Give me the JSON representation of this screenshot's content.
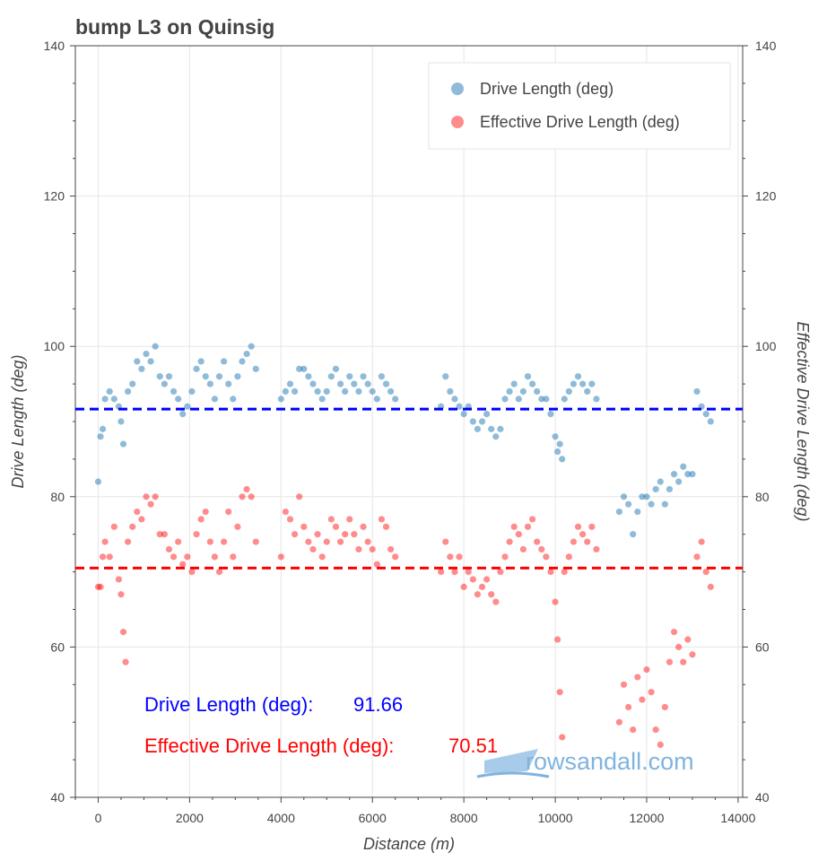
{
  "chart_data": {
    "type": "scatter",
    "title": "bump L3 on Quinsig",
    "xlabel": "Distance (m)",
    "ylabel": "Drive Length (deg)",
    "ylabel_right": "Effective Drive Length (deg)",
    "xlim": [
      -500,
      14100
    ],
    "ylim": [
      40,
      140
    ],
    "x_ticks": [
      0,
      2000,
      4000,
      6000,
      8000,
      10000,
      12000,
      14000
    ],
    "y_ticks": [
      40,
      60,
      80,
      100,
      120,
      140
    ],
    "legend_position": "top-right",
    "series": [
      {
        "name": "Drive Length (deg)",
        "color": "#1f77b4",
        "mean": 91.66,
        "mean_color": "#0000ff",
        "points": [
          [
            0,
            82
          ],
          [
            50,
            88
          ],
          [
            100,
            89
          ],
          [
            150,
            93
          ],
          [
            250,
            94
          ],
          [
            350,
            93
          ],
          [
            450,
            92
          ],
          [
            500,
            90
          ],
          [
            550,
            87
          ],
          [
            650,
            94
          ],
          [
            750,
            95
          ],
          [
            850,
            98
          ],
          [
            950,
            97
          ],
          [
            1050,
            99
          ],
          [
            1150,
            98
          ],
          [
            1250,
            100
          ],
          [
            1350,
            96
          ],
          [
            1450,
            95
          ],
          [
            1550,
            96
          ],
          [
            1650,
            94
          ],
          [
            1750,
            93
          ],
          [
            1850,
            91
          ],
          [
            1950,
            92
          ],
          [
            2050,
            94
          ],
          [
            2150,
            97
          ],
          [
            2250,
            98
          ],
          [
            2350,
            96
          ],
          [
            2450,
            95
          ],
          [
            2550,
            93
          ],
          [
            2650,
            96
          ],
          [
            2750,
            98
          ],
          [
            2850,
            95
          ],
          [
            2950,
            93
          ],
          [
            3050,
            96
          ],
          [
            3150,
            98
          ],
          [
            3250,
            99
          ],
          [
            3350,
            100
          ],
          [
            3450,
            97
          ],
          [
            4000,
            93
          ],
          [
            4100,
            94
          ],
          [
            4200,
            95
          ],
          [
            4300,
            94
          ],
          [
            4400,
            97
          ],
          [
            4500,
            97
          ],
          [
            4600,
            96
          ],
          [
            4700,
            95
          ],
          [
            4800,
            94
          ],
          [
            4900,
            93
          ],
          [
            5000,
            94
          ],
          [
            5100,
            96
          ],
          [
            5200,
            97
          ],
          [
            5300,
            95
          ],
          [
            5400,
            94
          ],
          [
            5500,
            96
          ],
          [
            5600,
            95
          ],
          [
            5700,
            94
          ],
          [
            5800,
            96
          ],
          [
            5900,
            95
          ],
          [
            6000,
            94
          ],
          [
            6100,
            93
          ],
          [
            6200,
            96
          ],
          [
            6300,
            95
          ],
          [
            6400,
            94
          ],
          [
            6500,
            93
          ],
          [
            7500,
            92
          ],
          [
            7600,
            96
          ],
          [
            7700,
            94
          ],
          [
            7800,
            93
          ],
          [
            7900,
            92
          ],
          [
            8000,
            91
          ],
          [
            8100,
            92
          ],
          [
            8200,
            90
          ],
          [
            8300,
            89
          ],
          [
            8400,
            90
          ],
          [
            8500,
            91
          ],
          [
            8600,
            89
          ],
          [
            8700,
            88
          ],
          [
            8800,
            89
          ],
          [
            8900,
            93
          ],
          [
            9000,
            94
          ],
          [
            9100,
            95
          ],
          [
            9200,
            93
          ],
          [
            9300,
            94
          ],
          [
            9400,
            96
          ],
          [
            9500,
            95
          ],
          [
            9600,
            94
          ],
          [
            9700,
            93
          ],
          [
            9800,
            93
          ],
          [
            9900,
            91
          ],
          [
            10000,
            88
          ],
          [
            10050,
            86
          ],
          [
            10100,
            87
          ],
          [
            10150,
            85
          ],
          [
            10200,
            93
          ],
          [
            10300,
            94
          ],
          [
            10400,
            95
          ],
          [
            10500,
            96
          ],
          [
            10600,
            95
          ],
          [
            10700,
            94
          ],
          [
            10800,
            95
          ],
          [
            10900,
            93
          ],
          [
            11400,
            78
          ],
          [
            11500,
            80
          ],
          [
            11600,
            79
          ],
          [
            11700,
            75
          ],
          [
            11800,
            78
          ],
          [
            11900,
            80
          ],
          [
            12000,
            80
          ],
          [
            12100,
            79
          ],
          [
            12200,
            81
          ],
          [
            12300,
            82
          ],
          [
            12400,
            79
          ],
          [
            12500,
            81
          ],
          [
            12600,
            83
          ],
          [
            12700,
            82
          ],
          [
            12800,
            84
          ],
          [
            12900,
            83
          ],
          [
            13000,
            83
          ],
          [
            13100,
            94
          ],
          [
            13200,
            92
          ],
          [
            13300,
            91
          ],
          [
            13400,
            90
          ]
        ]
      },
      {
        "name": "Effective Drive Length (deg)",
        "color": "#ff0000",
        "mean": 70.51,
        "mean_color": "#ff0000",
        "points": [
          [
            0,
            68
          ],
          [
            50,
            68
          ],
          [
            100,
            72
          ],
          [
            150,
            74
          ],
          [
            250,
            72
          ],
          [
            350,
            76
          ],
          [
            450,
            69
          ],
          [
            500,
            67
          ],
          [
            550,
            62
          ],
          [
            600,
            58
          ],
          [
            650,
            74
          ],
          [
            750,
            76
          ],
          [
            850,
            78
          ],
          [
            950,
            77
          ],
          [
            1050,
            80
          ],
          [
            1150,
            79
          ],
          [
            1250,
            80
          ],
          [
            1350,
            75
          ],
          [
            1450,
            75
          ],
          [
            1550,
            73
          ],
          [
            1650,
            72
          ],
          [
            1750,
            74
          ],
          [
            1850,
            71
          ],
          [
            1950,
            72
          ],
          [
            2050,
            70
          ],
          [
            2150,
            75
          ],
          [
            2250,
            77
          ],
          [
            2350,
            78
          ],
          [
            2450,
            74
          ],
          [
            2550,
            72
          ],
          [
            2650,
            70
          ],
          [
            2750,
            74
          ],
          [
            2850,
            78
          ],
          [
            2950,
            72
          ],
          [
            3050,
            76
          ],
          [
            3150,
            80
          ],
          [
            3250,
            81
          ],
          [
            3350,
            80
          ],
          [
            3450,
            74
          ],
          [
            4000,
            72
          ],
          [
            4100,
            78
          ],
          [
            4200,
            77
          ],
          [
            4300,
            75
          ],
          [
            4400,
            80
          ],
          [
            4500,
            76
          ],
          [
            4600,
            74
          ],
          [
            4700,
            73
          ],
          [
            4800,
            75
          ],
          [
            4900,
            72
          ],
          [
            5000,
            74
          ],
          [
            5100,
            77
          ],
          [
            5200,
            76
          ],
          [
            5300,
            74
          ],
          [
            5400,
            75
          ],
          [
            5500,
            77
          ],
          [
            5600,
            75
          ],
          [
            5700,
            73
          ],
          [
            5800,
            76
          ],
          [
            5900,
            74
          ],
          [
            6000,
            73
          ],
          [
            6100,
            71
          ],
          [
            6200,
            77
          ],
          [
            6300,
            76
          ],
          [
            6400,
            73
          ],
          [
            6500,
            72
          ],
          [
            7500,
            70
          ],
          [
            7600,
            74
          ],
          [
            7700,
            72
          ],
          [
            7800,
            70
          ],
          [
            7900,
            72
          ],
          [
            8000,
            68
          ],
          [
            8100,
            70
          ],
          [
            8200,
            69
          ],
          [
            8300,
            67
          ],
          [
            8400,
            68
          ],
          [
            8500,
            69
          ],
          [
            8600,
            67
          ],
          [
            8700,
            66
          ],
          [
            8800,
            70
          ],
          [
            8900,
            72
          ],
          [
            9000,
            74
          ],
          [
            9100,
            76
          ],
          [
            9200,
            75
          ],
          [
            9300,
            73
          ],
          [
            9400,
            76
          ],
          [
            9500,
            77
          ],
          [
            9600,
            74
          ],
          [
            9700,
            73
          ],
          [
            9800,
            72
          ],
          [
            9900,
            70
          ],
          [
            10000,
            66
          ],
          [
            10050,
            61
          ],
          [
            10100,
            54
          ],
          [
            10150,
            48
          ],
          [
            10200,
            70
          ],
          [
            10300,
            72
          ],
          [
            10400,
            74
          ],
          [
            10500,
            76
          ],
          [
            10600,
            75
          ],
          [
            10700,
            74
          ],
          [
            10800,
            76
          ],
          [
            10900,
            73
          ],
          [
            11400,
            50
          ],
          [
            11500,
            55
          ],
          [
            11600,
            52
          ],
          [
            11700,
            49
          ],
          [
            11800,
            56
          ],
          [
            11900,
            53
          ],
          [
            12000,
            57
          ],
          [
            12100,
            54
          ],
          [
            12200,
            49
          ],
          [
            12300,
            47
          ],
          [
            12400,
            52
          ],
          [
            12500,
            58
          ],
          [
            12600,
            62
          ],
          [
            12700,
            60
          ],
          [
            12800,
            58
          ],
          [
            12900,
            61
          ],
          [
            13000,
            59
          ],
          [
            13100,
            72
          ],
          [
            13200,
            74
          ],
          [
            13300,
            70
          ],
          [
            13400,
            68
          ]
        ]
      }
    ],
    "annotations": [
      {
        "label": "Drive Length (deg):",
        "value": "91.66",
        "color": "#0000ff"
      },
      {
        "label": "Effective Drive Length (deg):",
        "value": "70.51",
        "color": "#ff0000"
      }
    ]
  },
  "watermark": {
    "text": "rowsandall.com",
    "color": "#6aa7d8"
  }
}
